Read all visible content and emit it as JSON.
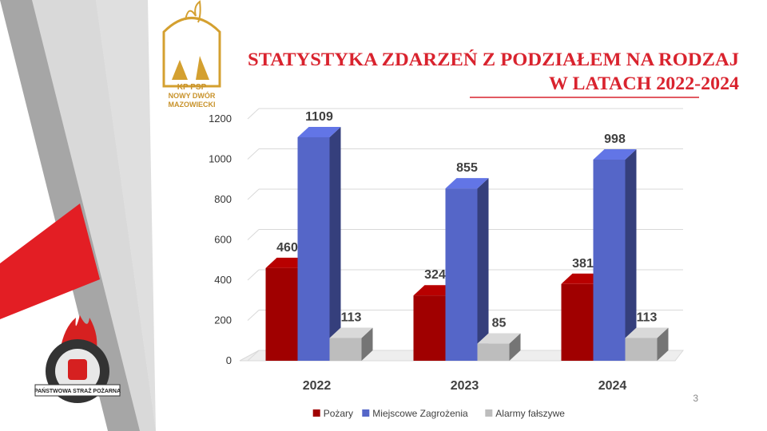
{
  "chart_data": {
    "type": "bar3d",
    "title": [
      "STATYSTYKA ZDARZEŃ Z PODZIAŁEM NA RODZAJ",
      "W LATACH 2022-2024"
    ],
    "categories": [
      "2022",
      "2023",
      "2024"
    ],
    "series": [
      {
        "name": "Pożary",
        "color": "#a00000",
        "values": [
          460,
          324,
          381
        ]
      },
      {
        "name": "Miejscowe Zagrożenia",
        "color": "#5566c8",
        "values": [
          1109,
          855,
          998
        ]
      },
      {
        "name": "Alarmy fałszywe",
        "color": "#bdbdbd",
        "values": [
          113,
          85,
          113
        ]
      }
    ],
    "ylim": [
      0,
      1200
    ],
    "yticks": [
      0,
      200,
      400,
      600,
      800,
      1000,
      1200
    ],
    "grid": true,
    "legend": "bottom"
  },
  "logo": {
    "lines": [
      "KP PSP",
      "NOWY DWÓR",
      "MAZOWIECKI"
    ],
    "badge": "PAŃSTWOWA STRAŻ POŻARNA"
  },
  "page_number": "3"
}
